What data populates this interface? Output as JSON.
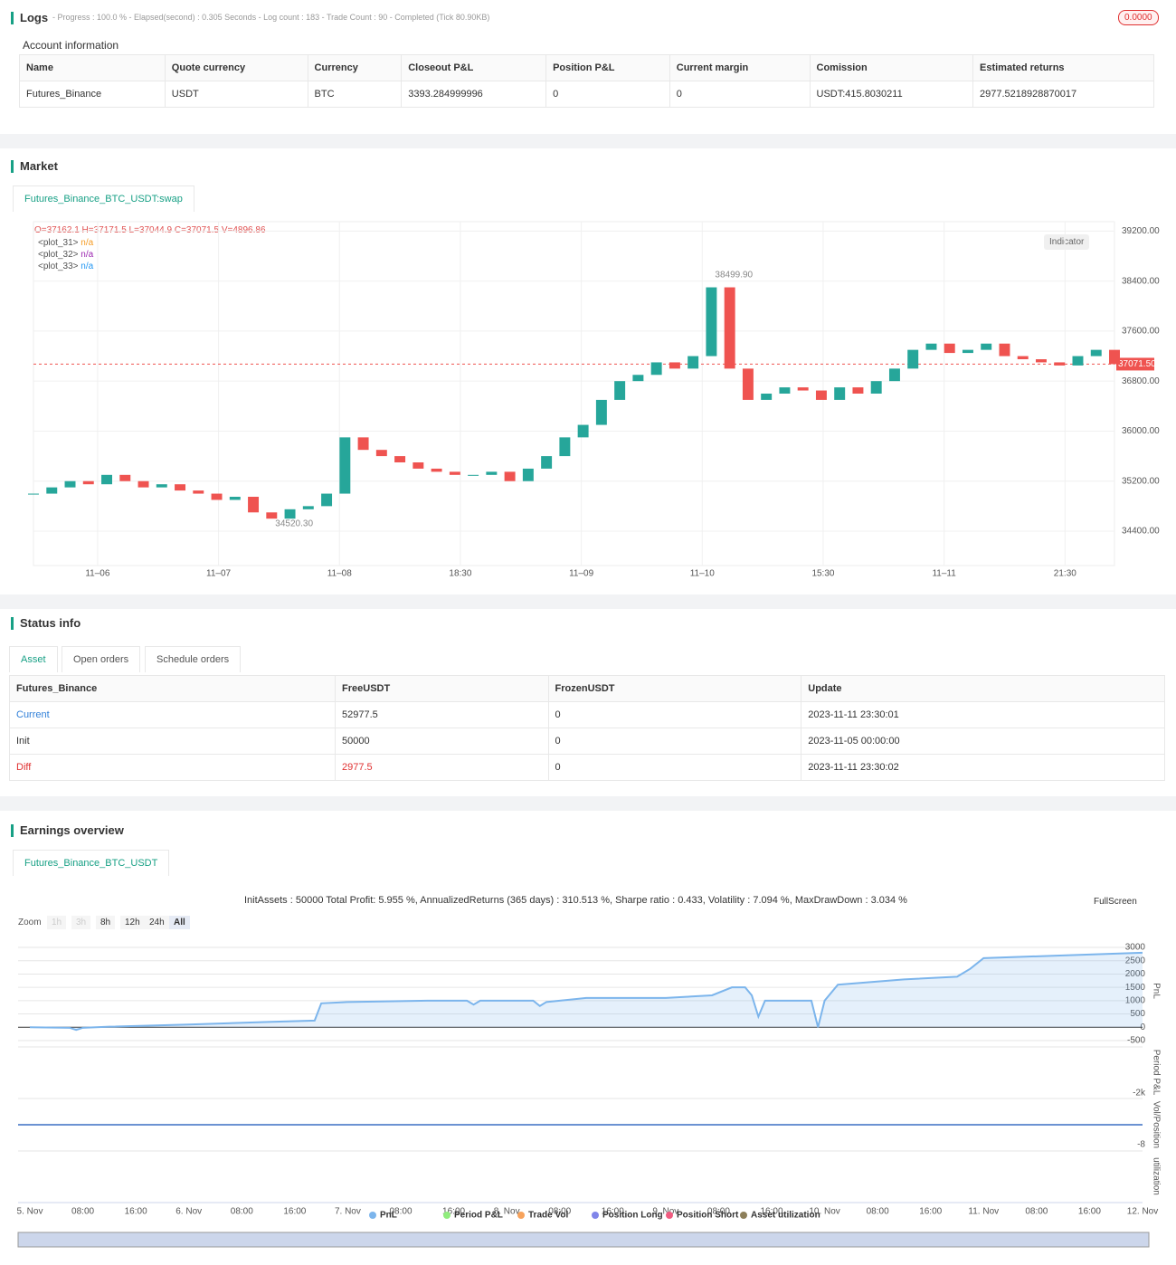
{
  "logs": {
    "title": "Logs",
    "status": "- Progress : 100.0 % - Elapsed(second) : 0.305  Seconds - Log count : 183 - Trade Count : 90 - Completed (Tick 80.90KB)",
    "badge": "0.0000"
  },
  "account": {
    "title": "Account information",
    "headers": [
      "Name",
      "Quote currency",
      "Currency",
      "Closeout P&L",
      "Position P&L",
      "Current margin",
      "Comission",
      "Estimated returns"
    ],
    "rows": [
      [
        "Futures_Binance",
        "USDT",
        "BTC",
        "3393.284999996",
        "0",
        "0",
        "USDT:415.8030211",
        "2977.5218928870017"
      ]
    ]
  },
  "market": {
    "title": "Market",
    "tab": "Futures_Binance_BTC_USDT:swap",
    "ohlc": "O=37162.1 H=37171.5 L=37044.9 C=37071.5 V=4896.86",
    "indicator": "Indicator",
    "legend": [
      {
        "name": "<plot_31>",
        "value": "n/a",
        "color": "#f59b23"
      },
      {
        "name": "<plot_32>",
        "value": "n/a",
        "color": "#9c27b0"
      },
      {
        "name": "<plot_33>",
        "value": "n/a",
        "color": "#2196f3"
      }
    ],
    "chart": {
      "type": "candlestick",
      "up_color": "#26a69a",
      "down_color": "#ef5350",
      "close": [
        35000,
        35100,
        35200,
        35150,
        35300,
        35200,
        35100,
        35150,
        35050,
        35000,
        34900,
        34950,
        34700,
        34600,
        34750,
        34800,
        35000,
        35900,
        35700,
        35600,
        35500,
        35400,
        35350,
        35300,
        35300,
        35350,
        35200,
        35400,
        35600,
        35900,
        36100,
        36500,
        36800,
        36900,
        37100,
        37000,
        37200,
        38300,
        37000,
        36500,
        36600,
        36700,
        36650,
        36500,
        36700,
        36600,
        36800,
        37000,
        37300,
        37400,
        37250,
        37300,
        37400,
        37200,
        37150,
        37100,
        37050,
        37200,
        37300,
        37071.5
      ],
      "xlim": [
        0,
        59
      ],
      "xticks": [
        {
          "value": 3.5,
          "label": "11–06"
        },
        {
          "value": 10.1,
          "label": "11–07"
        },
        {
          "value": 16.7,
          "label": "11–08"
        },
        {
          "value": 23.3,
          "label": "18:30"
        },
        {
          "value": 29.9,
          "label": "11–09"
        },
        {
          "value": 36.5,
          "label": "11–10"
        },
        {
          "value": 43.1,
          "label": "15:30"
        },
        {
          "value": 49.7,
          "label": "11–11"
        },
        {
          "value": 56.3,
          "label": "21:30"
        }
      ],
      "ylim": [
        33850,
        39350
      ],
      "yticks": [
        {
          "value": 39200,
          "label": "39200.00"
        },
        {
          "value": 38400,
          "label": "38400.00"
        },
        {
          "value": 37600,
          "label": "37600.00"
        },
        {
          "value": 36800,
          "label": "36800.00"
        },
        {
          "value": 36000,
          "label": "36000.00"
        },
        {
          "value": 35200,
          "label": "35200.00"
        },
        {
          "value": 34400,
          "label": "34400.00"
        }
      ],
      "last_price": {
        "value": 37071.5,
        "label": "37071.50"
      },
      "annotations": [
        {
          "x": 37,
          "value": 38499.9,
          "label": "38499.90"
        },
        {
          "x": 13,
          "value": 34520.3,
          "label": "34520.30"
        }
      ]
    }
  },
  "status": {
    "title": "Status info",
    "tabs": [
      "Asset",
      "Open orders",
      "Schedule orders"
    ],
    "headers": [
      "Futures_Binance",
      "FreeUSDT",
      "FrozenUSDT",
      "Update"
    ],
    "rows": [
      [
        "Current",
        "52977.5",
        "0",
        "2023-11-11 23:30:01"
      ],
      [
        "Init",
        "50000",
        "0",
        "2023-11-05 00:00:00"
      ],
      [
        "Diff",
        "2977.5",
        "0",
        "2023-11-11 23:30:02"
      ]
    ]
  },
  "earnings": {
    "title": "Earnings overview",
    "tab": "Futures_Binance_BTC_USDT",
    "summary": "InitAssets : 50000 Total Profit: 5.955 %, AnnualizedReturns (365 days) : 310.513 %, Sharpe ratio : 0.433, Volatility : 7.094 %, MaxDrawDown : 3.034 %",
    "fullscreen": "FullScreen",
    "zoom_label": "Zoom",
    "zoom": [
      "1h",
      "3h",
      "8h",
      "12h",
      "24h",
      "All"
    ],
    "chart": {
      "type": "area",
      "color": "#7cb5ec",
      "x": [
        0,
        6,
        7,
        8,
        12,
        24,
        36,
        43,
        44,
        48,
        60,
        66,
        67,
        68,
        76,
        77,
        78,
        84,
        96,
        103,
        106,
        108,
        109,
        110,
        111,
        118,
        119,
        120,
        122,
        132,
        140,
        142,
        144,
        156,
        168
      ],
      "values": [
        0,
        -20,
        -100,
        -20,
        20,
        100,
        200,
        250,
        900,
        950,
        1000,
        1000,
        850,
        1000,
        1000,
        800,
        950,
        1100,
        1100,
        1200,
        1500,
        1500,
        1200,
        400,
        1000,
        1000,
        0,
        1000,
        1600,
        1800,
        1900,
        2200,
        2600,
        2700,
        2800
      ],
      "xlim": [
        0,
        168
      ],
      "xticks": [
        {
          "value": 0,
          "label": "5. Nov"
        },
        {
          "value": 8,
          "label": "08:00"
        },
        {
          "value": 16,
          "label": "16:00"
        },
        {
          "value": 24,
          "label": "6. Nov"
        },
        {
          "value": 32,
          "label": "08:00"
        },
        {
          "value": 40,
          "label": "16:00"
        },
        {
          "value": 48,
          "label": "7. Nov"
        },
        {
          "value": 56,
          "label": "08:00"
        },
        {
          "value": 64,
          "label": "16:00"
        },
        {
          "value": 72,
          "label": "8. Nov"
        },
        {
          "value": 80,
          "label": "08:00"
        },
        {
          "value": 88,
          "label": "16:00"
        },
        {
          "value": 96,
          "label": "9. Nov"
        },
        {
          "value": 104,
          "label": "08:00"
        },
        {
          "value": 112,
          "label": "16:00"
        },
        {
          "value": 120,
          "label": "10. Nov"
        },
        {
          "value": 128,
          "label": "08:00"
        },
        {
          "value": 136,
          "label": "16:00"
        },
        {
          "value": 144,
          "label": "11. Nov"
        },
        {
          "value": 152,
          "label": "08:00"
        },
        {
          "value": 160,
          "label": "16:00"
        },
        {
          "value": 168,
          "label": "12. Nov"
        }
      ],
      "ylim": [
        -570,
        3240
      ],
      "yticks": [
        3000,
        2500,
        2000,
        1500,
        1000,
        500,
        0,
        -500
      ],
      "panel_titles": [
        "PnL",
        "Period P&L",
        "Vol/Position",
        "utilization"
      ],
      "period_yticks": [
        {
          "value": -2000,
          "label": "-2k"
        }
      ],
      "vol_yticks": [
        -8
      ],
      "legend": [
        {
          "name": "PnL",
          "color": "#7cb5ec"
        },
        {
          "name": "Period P&L",
          "color": "#90ed7d"
        },
        {
          "name": "Trade Vol",
          "color": "#f7a35c"
        },
        {
          "name": "Position Long",
          "color": "#8085e9"
        },
        {
          "name": "Position Short",
          "color": "#f15c80"
        },
        {
          "name": "Asset utilization",
          "color": "#8d7f5a"
        }
      ]
    }
  }
}
